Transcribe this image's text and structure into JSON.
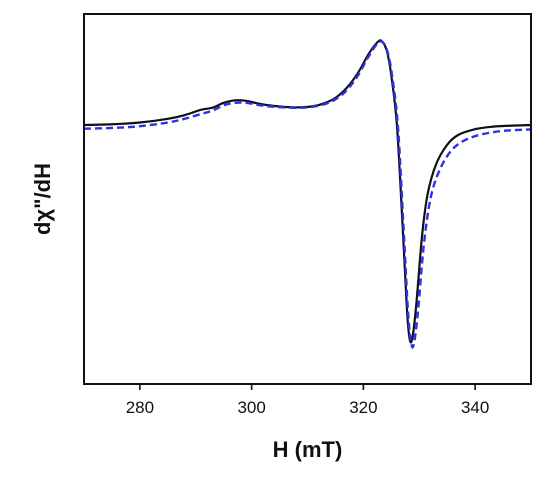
{
  "chart_data": {
    "type": "line",
    "title": "",
    "xlabel": "H (mT)",
    "ylabel": "dχ\"/dH",
    "xlim": [
      270,
      350
    ],
    "ylim": [
      -1.05,
      0.45
    ],
    "xticks": [
      280,
      300,
      320,
      340
    ],
    "xtick_labels": [
      "280",
      "300",
      "320",
      "340"
    ],
    "show_yticks": false,
    "grid": false,
    "legend": "none",
    "series": [
      {
        "color": "#111111",
        "dash": "solid",
        "points": [
          [
            270,
            0.0
          ],
          [
            275,
            0.003
          ],
          [
            280,
            0.01
          ],
          [
            285,
            0.025
          ],
          [
            288,
            0.04
          ],
          [
            291,
            0.062
          ],
          [
            293,
            0.07
          ],
          [
            295,
            0.09
          ],
          [
            297,
            0.1
          ],
          [
            299,
            0.098
          ],
          [
            301,
            0.088
          ],
          [
            303,
            0.08
          ],
          [
            305,
            0.075
          ],
          [
            307,
            0.072
          ],
          [
            309,
            0.072
          ],
          [
            311,
            0.076
          ],
          [
            313,
            0.088
          ],
          [
            315,
            0.11
          ],
          [
            317,
            0.15
          ],
          [
            319,
            0.21
          ],
          [
            321,
            0.29
          ],
          [
            322.5,
            0.335
          ],
          [
            323.3,
            0.34
          ],
          [
            324.2,
            0.3
          ],
          [
            325,
            0.2
          ],
          [
            326,
            0.0
          ],
          [
            327,
            -0.4
          ],
          [
            327.8,
            -0.75
          ],
          [
            328.3,
            -0.87
          ],
          [
            328.8,
            -0.86
          ],
          [
            329.5,
            -0.72
          ],
          [
            330.5,
            -0.45
          ],
          [
            331.5,
            -0.28
          ],
          [
            333,
            -0.16
          ],
          [
            335,
            -0.08
          ],
          [
            337,
            -0.04
          ],
          [
            340,
            -0.017
          ],
          [
            343,
            -0.007
          ],
          [
            346,
            -0.003
          ],
          [
            350,
            0.0
          ]
        ]
      },
      {
        "color": "#2e2ef0",
        "dash": "dashed",
        "points": [
          [
            270,
            -0.015
          ],
          [
            275,
            -0.012
          ],
          [
            280,
            -0.005
          ],
          [
            285,
            0.01
          ],
          [
            288,
            0.025
          ],
          [
            291,
            0.045
          ],
          [
            293,
            0.058
          ],
          [
            295,
            0.08
          ],
          [
            297,
            0.09
          ],
          [
            299,
            0.09
          ],
          [
            301,
            0.082
          ],
          [
            303,
            0.076
          ],
          [
            305,
            0.072
          ],
          [
            307,
            0.07
          ],
          [
            309,
            0.07
          ],
          [
            311,
            0.074
          ],
          [
            313,
            0.084
          ],
          [
            315,
            0.104
          ],
          [
            317,
            0.14
          ],
          [
            319,
            0.2
          ],
          [
            321,
            0.28
          ],
          [
            322.5,
            0.33
          ],
          [
            323.5,
            0.335
          ],
          [
            324.4,
            0.29
          ],
          [
            325.2,
            0.19
          ],
          [
            326.2,
            -0.01
          ],
          [
            327.2,
            -0.42
          ],
          [
            328,
            -0.76
          ],
          [
            328.6,
            -0.89
          ],
          [
            329.1,
            -0.88
          ],
          [
            329.8,
            -0.75
          ],
          [
            330.8,
            -0.49
          ],
          [
            332,
            -0.3
          ],
          [
            333.5,
            -0.19
          ],
          [
            335.5,
            -0.11
          ],
          [
            337.5,
            -0.07
          ],
          [
            340,
            -0.045
          ],
          [
            343,
            -0.03
          ],
          [
            346,
            -0.022
          ],
          [
            350,
            -0.018
          ]
        ]
      }
    ]
  }
}
